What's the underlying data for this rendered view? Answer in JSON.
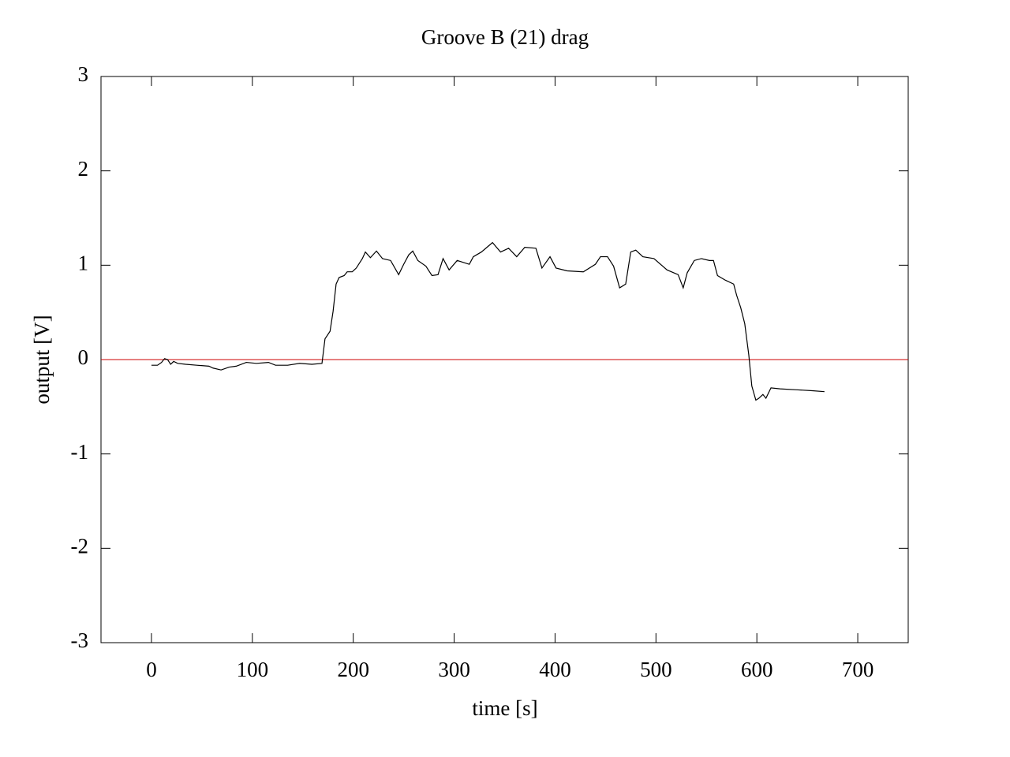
{
  "chart_data": {
    "type": "line",
    "title": "Groove B (21) drag",
    "xlabel": "time [s]",
    "ylabel": "output [V]",
    "xlim": [
      -50,
      750
    ],
    "xticks": [
      0,
      100,
      200,
      300,
      400,
      500,
      600,
      700
    ],
    "ylim": [
      -3,
      3
    ],
    "yticks": [
      -3,
      -2,
      -1,
      0,
      1,
      2,
      3
    ],
    "hline": {
      "value": 0,
      "color": "#cc0000"
    },
    "series": [
      {
        "color": "#000000",
        "x": [
          0,
          6,
          10,
          13,
          16,
          19,
          22,
          26,
          34,
          45,
          57,
          61,
          69,
          77,
          84,
          94,
          104,
          116,
          123,
          135,
          147,
          159,
          169,
          172,
          177,
          180,
          183,
          186,
          191,
          194,
          199,
          203,
          209,
          212,
          217,
          223,
          229,
          237,
          245,
          250,
          255,
          259,
          264,
          272,
          278,
          284,
          289,
          295,
          303,
          315,
          319,
          327,
          338,
          346,
          354,
          362,
          370,
          381,
          387,
          395,
          401,
          412,
          428,
          440,
          445,
          452,
          458,
          464,
          470,
          475,
          480,
          487,
          498,
          511,
          522,
          527,
          531,
          538,
          545,
          553,
          557,
          561,
          569,
          577,
          580,
          584,
          588,
          592,
          595,
          599,
          602,
          606,
          609,
          614,
          623,
          639,
          655,
          667
        ],
        "values": [
          -0.06,
          -0.06,
          -0.03,
          0.01,
          0,
          -0.05,
          -0.02,
          -0.04,
          -0.05,
          -0.06,
          -0.07,
          -0.09,
          -0.11,
          -0.08,
          -0.07,
          -0.03,
          -0.04,
          -0.03,
          -0.06,
          -0.06,
          -0.04,
          -0.05,
          -0.04,
          0.22,
          0.3,
          0.51,
          0.8,
          0.87,
          0.89,
          0.93,
          0.93,
          0.97,
          1.07,
          1.14,
          1.08,
          1.15,
          1.07,
          1.05,
          0.9,
          1.01,
          1.11,
          1.15,
          1.05,
          0.99,
          0.89,
          0.9,
          1.07,
          0.95,
          1.05,
          1.01,
          1.09,
          1.14,
          1.24,
          1.14,
          1.18,
          1.09,
          1.19,
          1.18,
          0.97,
          1.09,
          0.97,
          0.94,
          0.93,
          1.01,
          1.09,
          1.09,
          0.99,
          0.76,
          0.8,
          1.14,
          1.16,
          1.09,
          1.07,
          0.95,
          0.9,
          0.76,
          0.92,
          1.05,
          1.07,
          1.05,
          1.05,
          0.89,
          0.84,
          0.8,
          0.68,
          0.55,
          0.38,
          0.05,
          -0.28,
          -0.43,
          -0.41,
          -0.37,
          -0.41,
          -0.3,
          -0.31,
          -0.32,
          -0.33,
          -0.34
        ]
      }
    ]
  }
}
